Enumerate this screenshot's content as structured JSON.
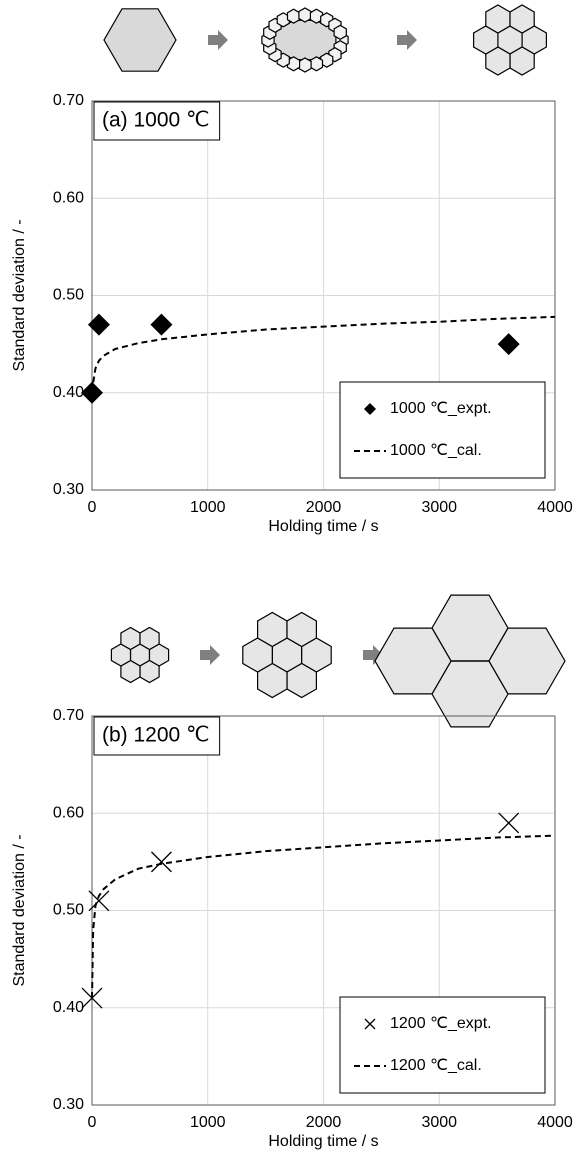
{
  "chart_data": [
    {
      "type": "scatter",
      "title": "(a) 1000 ℃",
      "x_label": "Holding time / s",
      "y_label": "Standard deviation / -",
      "xlim": [
        0,
        4000
      ],
      "xticks": [
        0,
        1000,
        2000,
        3000,
        4000
      ],
      "ylim": [
        0.3,
        0.7
      ],
      "yticks": [
        {
          "value": 0.3,
          "label": "0.30"
        },
        {
          "value": 0.4,
          "label": "0.40"
        },
        {
          "value": 0.5,
          "label": "0.50"
        },
        {
          "value": 0.6,
          "label": "0.60"
        },
        {
          "value": 0.7,
          "label": "0.70"
        }
      ],
      "grid": true,
      "legend": "lower right",
      "series": [
        {
          "name": "1000 ℃_expt.",
          "type": "scatter",
          "marker": "diamond",
          "color": "#000000",
          "x": [
            0,
            60,
            600,
            3600
          ],
          "values": [
            0.4,
            0.47,
            0.47,
            0.45
          ]
        },
        {
          "name": "1000 ℃_cal.",
          "type": "line",
          "dash": true,
          "color": "#000000",
          "x": [
            0,
            10,
            30,
            60,
            100,
            200,
            400,
            600,
            1000,
            1500,
            2000,
            2500,
            3000,
            3500,
            4000
          ],
          "values": [
            0.39,
            0.41,
            0.425,
            0.433,
            0.438,
            0.445,
            0.451,
            0.455,
            0.46,
            0.465,
            0.468,
            0.471,
            0.473,
            0.476,
            0.478
          ]
        }
      ]
    },
    {
      "type": "scatter",
      "title": "(b) 1200 ℃",
      "x_label": "Holding time / s",
      "y_label": "Standard deviation / -",
      "xlim": [
        0,
        4000
      ],
      "xticks": [
        0,
        1000,
        2000,
        3000,
        4000
      ],
      "ylim": [
        0.3,
        0.7
      ],
      "yticks": [
        {
          "value": 0.3,
          "label": "0.30"
        },
        {
          "value": 0.4,
          "label": "0.40"
        },
        {
          "value": 0.5,
          "label": "0.50"
        },
        {
          "value": 0.6,
          "label": "0.60"
        },
        {
          "value": 0.7,
          "label": "0.70"
        }
      ],
      "grid": true,
      "legend": "lower right",
      "series": [
        {
          "name": "1200 ℃_expt.",
          "type": "scatter",
          "marker": "x",
          "color": "#000000",
          "x": [
            0,
            60,
            600,
            3600
          ],
          "values": [
            0.41,
            0.51,
            0.55,
            0.59
          ]
        },
        {
          "name": "1200 ℃_cal.",
          "type": "line",
          "dash": true,
          "color": "#000000",
          "x": [
            0,
            10,
            30,
            60,
            100,
            200,
            400,
            600,
            1000,
            1500,
            2000,
            2500,
            3000,
            3500,
            4000
          ],
          "values": [
            0.41,
            0.48,
            0.505,
            0.515,
            0.522,
            0.532,
            0.543,
            0.548,
            0.555,
            0.561,
            0.565,
            0.569,
            0.572,
            0.575,
            0.577
          ]
        }
      ]
    }
  ]
}
